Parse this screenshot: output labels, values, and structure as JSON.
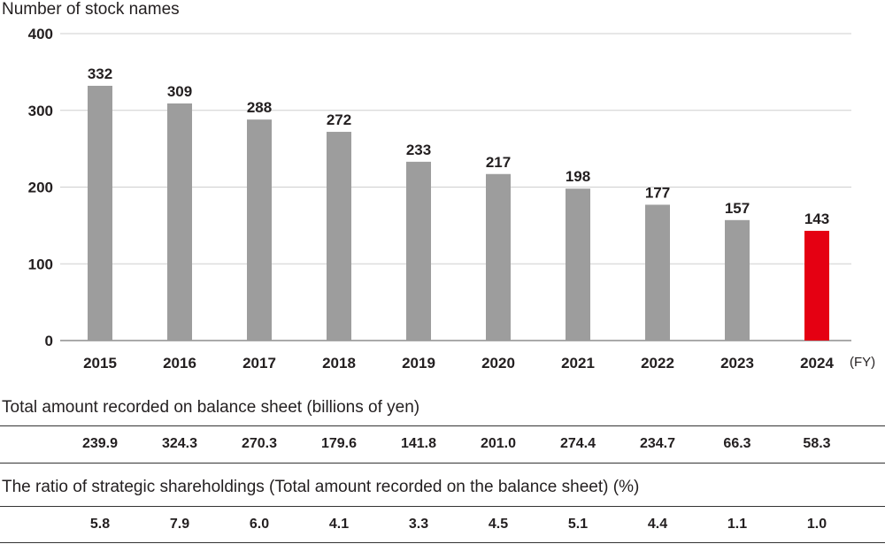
{
  "chart_data": {
    "type": "bar",
    "ylabel": "Number of stock names",
    "xunit": "(FY)",
    "categories": [
      "2015",
      "2016",
      "2017",
      "2018",
      "2019",
      "2020",
      "2021",
      "2022",
      "2023",
      "2024"
    ],
    "values": [
      332,
      309,
      288,
      272,
      233,
      217,
      198,
      177,
      157,
      143
    ],
    "ylim": [
      0,
      400
    ],
    "yticks": [
      0,
      100,
      200,
      300,
      400
    ],
    "grid": true,
    "bar_color": "#9d9d9d",
    "highlight_color": "#e50012",
    "highlight_category": "2024"
  },
  "balance_sheet": {
    "title": "Total amount recorded on balance sheet (billions of yen)",
    "values": [
      "239.9",
      "324.3",
      "270.3",
      "179.6",
      "141.8",
      "201.0",
      "274.4",
      "234.7",
      "66.3",
      "58.3"
    ]
  },
  "ratio": {
    "title": "The ratio of strategic shareholdings (Total amount recorded on the balance sheet) (%)",
    "values": [
      "5.8",
      "7.9",
      "6.0",
      "4.1",
      "3.3",
      "4.5",
      "5.1",
      "4.4",
      "1.1",
      "1.0"
    ]
  }
}
